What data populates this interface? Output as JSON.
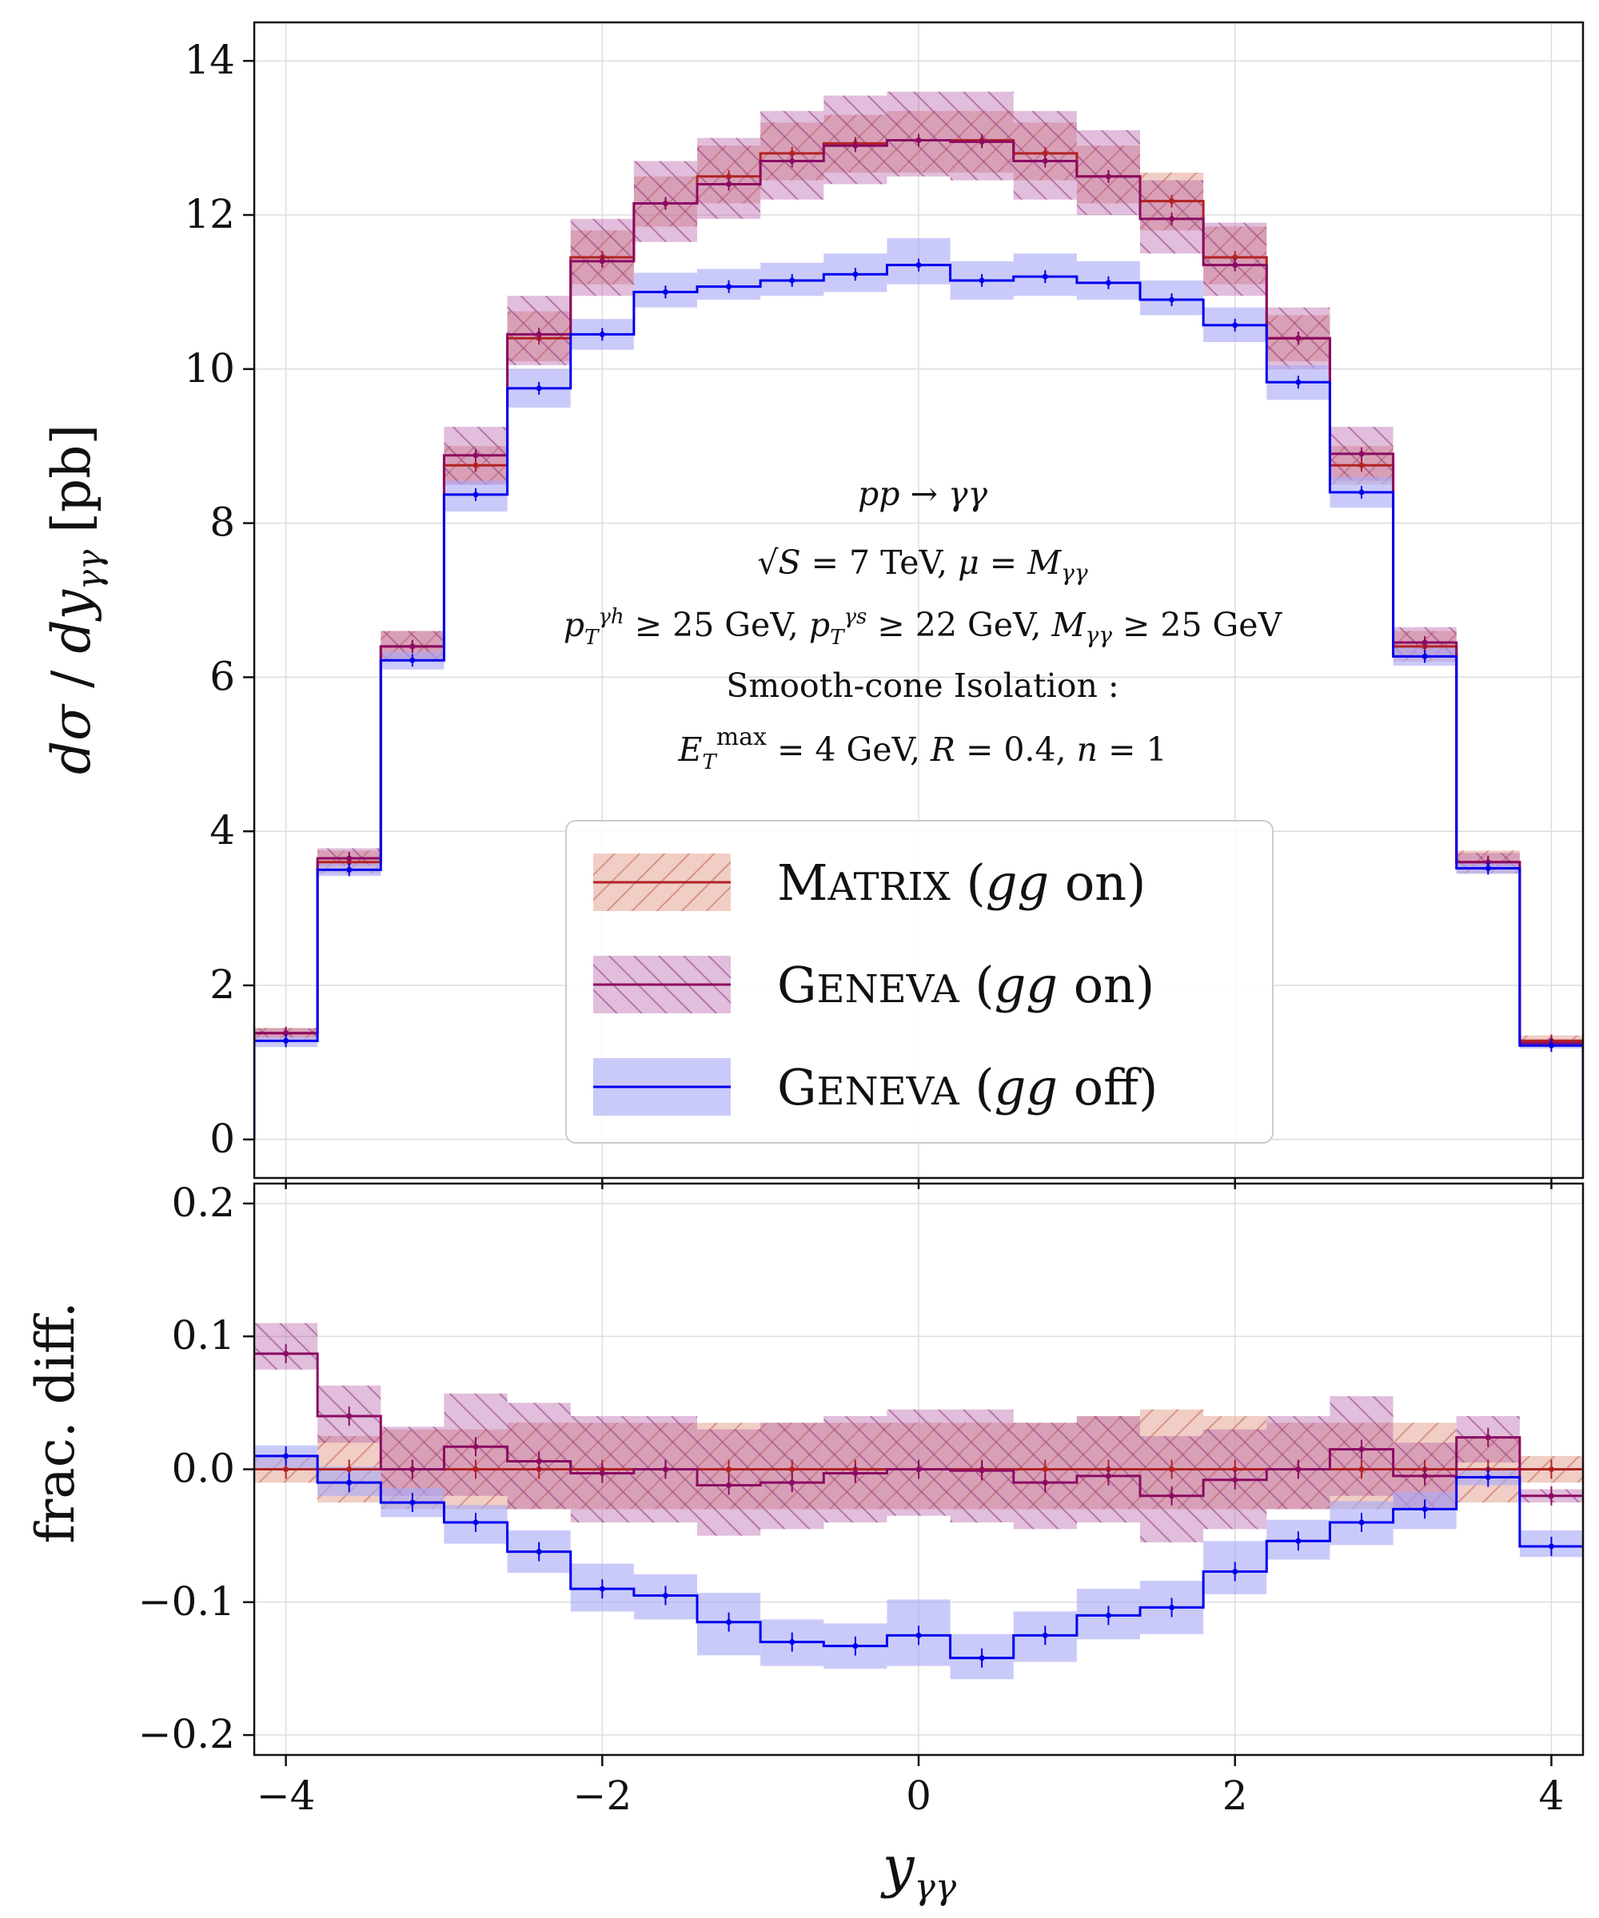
{
  "chart_data": {
    "type": "line",
    "bins": [
      [
        -4.2,
        -3.8
      ],
      [
        -3.8,
        -3.4
      ],
      [
        -3.4,
        -3.0
      ],
      [
        -3.0,
        -2.6
      ],
      [
        -2.6,
        -2.2
      ],
      [
        -2.2,
        -1.8
      ],
      [
        -1.8,
        -1.4
      ],
      [
        -1.4,
        -1.0
      ],
      [
        -1.0,
        -0.6
      ],
      [
        -0.6,
        -0.2
      ],
      [
        -0.2,
        0.2
      ],
      [
        0.2,
        0.6
      ],
      [
        0.6,
        1.0
      ],
      [
        1.0,
        1.4
      ],
      [
        1.4,
        1.8
      ],
      [
        1.8,
        2.2
      ],
      [
        2.2,
        2.6
      ],
      [
        2.6,
        3.0
      ],
      [
        3.0,
        3.4
      ],
      [
        3.4,
        3.8
      ],
      [
        3.8,
        4.2
      ]
    ],
    "annotations": [
      "pp → γγ",
      "√S = 7 TeV, μ = Mγγ",
      "pTγh ≥ 25 GeV,  pTγs ≥ 22 GeV,  Mγγ ≥ 25 GeV",
      "Smooth-cone Isolation :",
      "ETmax = 4 GeV,  R = 0.4,  n = 1"
    ],
    "colors": {
      "matrix": "#b22222",
      "matrix_band": "#e3a596",
      "geneva_on": "#8b0a62",
      "geneva_on_band": "#c98ec7",
      "geneva_off": "#0000ee",
      "geneva_off_band": "#a9a9f7"
    },
    "panels": [
      {
        "name": "main",
        "ylabel": "dσ / dyγγ  [pb]",
        "ylim": [
          -0.5,
          14.5
        ],
        "yticks": [
          0,
          2,
          4,
          6,
          8,
          10,
          12,
          14
        ],
        "grid": true,
        "series": [
          {
            "name": "Matrix (gg on)",
            "values": [
              1.38,
              3.6,
              6.4,
              8.75,
              10.4,
              11.45,
              12.15,
              12.5,
              12.8,
              12.93,
              12.97,
              12.97,
              12.8,
              12.5,
              12.18,
              11.45,
              10.4,
              8.75,
              6.4,
              3.6,
              1.28
            ],
            "band_lo": [
              1.3,
              3.45,
              6.2,
              8.5,
              10.1,
              11.1,
              11.85,
              12.15,
              12.45,
              12.55,
              12.55,
              12.55,
              12.45,
              12.15,
              11.8,
              11.1,
              10.1,
              8.5,
              6.2,
              3.45,
              1.2
            ],
            "band_hi": [
              1.45,
              3.75,
              6.6,
              9.0,
              10.75,
              11.8,
              12.5,
              12.9,
              13.2,
              13.3,
              13.35,
              13.35,
              13.2,
              12.9,
              12.55,
              11.85,
              10.7,
              9.0,
              6.6,
              3.75,
              1.35
            ]
          },
          {
            "name": "Geneva (gg on)",
            "values": [
              1.38,
              3.65,
              6.4,
              8.88,
              10.45,
              11.4,
              12.15,
              12.4,
              12.7,
              12.9,
              12.97,
              12.95,
              12.7,
              12.5,
              11.95,
              11.35,
              10.4,
              8.9,
              6.45,
              3.6,
              1.25
            ],
            "band_lo": [
              1.32,
              3.55,
              6.2,
              8.5,
              10.05,
              10.95,
              11.65,
              11.95,
              12.2,
              12.4,
              12.5,
              12.45,
              12.2,
              12.0,
              11.5,
              10.95,
              10.0,
              8.55,
              6.25,
              3.5,
              1.2
            ],
            "band_hi": [
              1.44,
              3.78,
              6.6,
              9.25,
              10.95,
              11.95,
              12.7,
              13.0,
              13.35,
              13.55,
              13.6,
              13.6,
              13.35,
              13.1,
              12.45,
              11.9,
              10.8,
              9.25,
              6.65,
              3.72,
              1.3
            ]
          },
          {
            "name": "Geneva (gg off)",
            "values": [
              1.28,
              3.5,
              6.22,
              8.37,
              9.75,
              10.45,
              11.0,
              11.07,
              11.15,
              11.23,
              11.35,
              11.15,
              11.2,
              11.12,
              10.9,
              10.57,
              9.83,
              8.4,
              6.27,
              3.52,
              1.22
            ],
            "band_lo": [
              1.2,
              3.42,
              6.1,
              8.15,
              9.5,
              10.25,
              10.8,
              10.9,
              10.95,
              11.0,
              11.1,
              10.9,
              10.95,
              10.9,
              10.7,
              10.35,
              9.6,
              8.2,
              6.15,
              3.45,
              1.18
            ],
            "band_hi": [
              1.33,
              3.58,
              6.33,
              8.55,
              10.0,
              10.65,
              11.25,
              11.3,
              11.38,
              11.5,
              11.7,
              11.4,
              11.5,
              11.4,
              11.15,
              10.8,
              10.05,
              8.6,
              6.4,
              3.6,
              1.27
            ]
          }
        ]
      },
      {
        "name": "ratio",
        "ylabel": "frac. diff.",
        "xlabel": "yγγ",
        "ylim": [
          -0.215,
          0.215
        ],
        "xlim": [
          -4.2,
          4.2
        ],
        "xticks": [
          -4,
          -2,
          0,
          2,
          4
        ],
        "yticks": [
          0.2,
          0.1,
          0.0,
          -0.1,
          -0.2
        ],
        "ytick_labels": [
          "0.2",
          "0.1",
          "0.0",
          "−0.1",
          "−0.2"
        ],
        "xtick_labels": [
          "−4",
          "−2",
          "0",
          "2",
          "4"
        ],
        "grid": true,
        "series": [
          {
            "name": "Matrix (gg on)",
            "values": [
              0,
              0,
              0,
              0,
              0,
              0,
              0,
              0,
              0,
              0,
              0,
              0,
              0,
              0,
              0,
              0,
              0,
              0,
              0,
              0,
              0
            ],
            "band_lo": [
              -0.01,
              -0.025,
              -0.03,
              -0.03,
              -0.03,
              -0.03,
              -0.03,
              -0.03,
              -0.03,
              -0.03,
              -0.03,
              -0.03,
              -0.03,
              -0.03,
              -0.03,
              -0.03,
              -0.03,
              -0.03,
              -0.03,
              -0.025,
              -0.01
            ],
            "band_hi": [
              0.01,
              0.025,
              0.03,
              0.03,
              0.035,
              0.035,
              0.035,
              0.035,
              0.035,
              0.035,
              0.035,
              0.035,
              0.035,
              0.04,
              0.045,
              0.04,
              0.035,
              0.035,
              0.035,
              0.025,
              0.01
            ]
          },
          {
            "name": "Geneva (gg on)",
            "values": [
              0.087,
              0.04,
              0.0,
              0.017,
              0.006,
              -0.003,
              0.0,
              -0.012,
              -0.01,
              -0.003,
              0.0,
              -0.001,
              -0.01,
              -0.005,
              -0.02,
              -0.008,
              0.0,
              0.015,
              -0.005,
              0.024,
              -0.02
            ],
            "band_lo": [
              0.075,
              0.02,
              -0.02,
              -0.02,
              -0.03,
              -0.04,
              -0.04,
              -0.05,
              -0.045,
              -0.04,
              -0.035,
              -0.04,
              -0.045,
              -0.04,
              -0.055,
              -0.045,
              -0.03,
              -0.02,
              -0.03,
              0.005,
              -0.025
            ],
            "band_hi": [
              0.11,
              0.063,
              0.032,
              0.057,
              0.05,
              0.04,
              0.04,
              0.03,
              0.035,
              0.04,
              0.045,
              0.045,
              0.035,
              0.04,
              0.025,
              0.03,
              0.04,
              0.055,
              0.02,
              0.04,
              -0.015
            ]
          },
          {
            "name": "Geneva (gg off)",
            "values": [
              0.01,
              -0.01,
              -0.025,
              -0.04,
              -0.062,
              -0.09,
              -0.095,
              -0.115,
              -0.13,
              -0.133,
              -0.125,
              -0.142,
              -0.125,
              -0.11,
              -0.104,
              -0.077,
              -0.054,
              -0.04,
              -0.03,
              -0.006,
              -0.058
            ],
            "band_lo": [
              0.0,
              -0.02,
              -0.036,
              -0.056,
              -0.078,
              -0.107,
              -0.113,
              -0.14,
              -0.148,
              -0.15,
              -0.148,
              -0.158,
              -0.145,
              -0.128,
              -0.124,
              -0.094,
              -0.068,
              -0.057,
              -0.045,
              -0.012,
              -0.066
            ],
            "band_hi": [
              0.018,
              0.002,
              -0.014,
              -0.027,
              -0.046,
              -0.071,
              -0.079,
              -0.093,
              -0.113,
              -0.116,
              -0.098,
              -0.124,
              -0.107,
              -0.09,
              -0.084,
              -0.054,
              -0.038,
              -0.024,
              -0.017,
              0.0,
              -0.046
            ]
          }
        ]
      }
    ]
  },
  "legend": {
    "items": [
      {
        "name": "Matrix (gg on)",
        "color": "#b22222",
        "band": "#e3a596",
        "hatch": "matrix"
      },
      {
        "name": "Geneva (gg on)",
        "color": "#8b0a62",
        "band": "#c98ec7",
        "hatch": "geneva"
      },
      {
        "name": "Geneva (gg off)",
        "color": "#0000ee",
        "band": "#a9a9f7",
        "hatch": "none"
      }
    ]
  }
}
